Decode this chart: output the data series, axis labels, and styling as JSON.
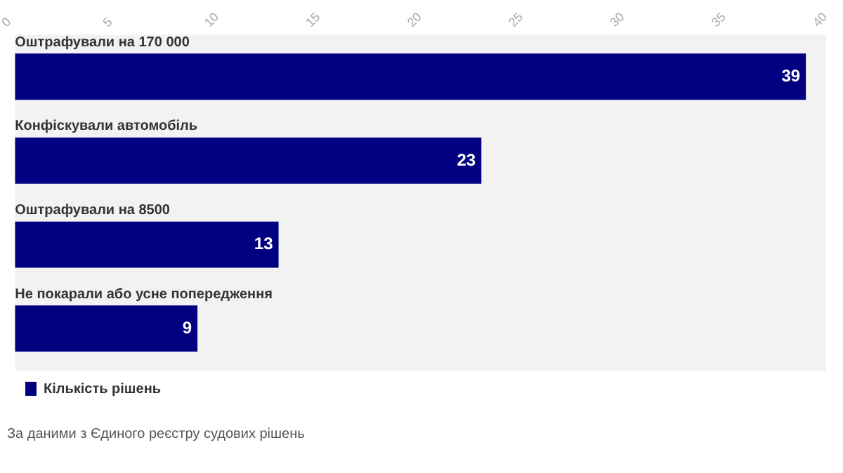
{
  "chart_data": {
    "type": "bar",
    "orientation": "horizontal",
    "categories": [
      "Оштрафували на 170 000",
      "Конфіскували автомобіль",
      "Оштрафували на 8500",
      "Не покарали або усне попередження"
    ],
    "series": [
      {
        "name": "Кількість рішень",
        "color": "#000080",
        "values": [
          39,
          23,
          13,
          9
        ]
      }
    ],
    "xlim": [
      0,
      40
    ],
    "xticks": [
      0,
      5,
      10,
      15,
      20,
      25,
      30,
      35,
      40
    ],
    "data_labels": true,
    "legend": "bottom left",
    "annotations": [
      "За даними з Єдиного реєстру судових рішень"
    ]
  }
}
